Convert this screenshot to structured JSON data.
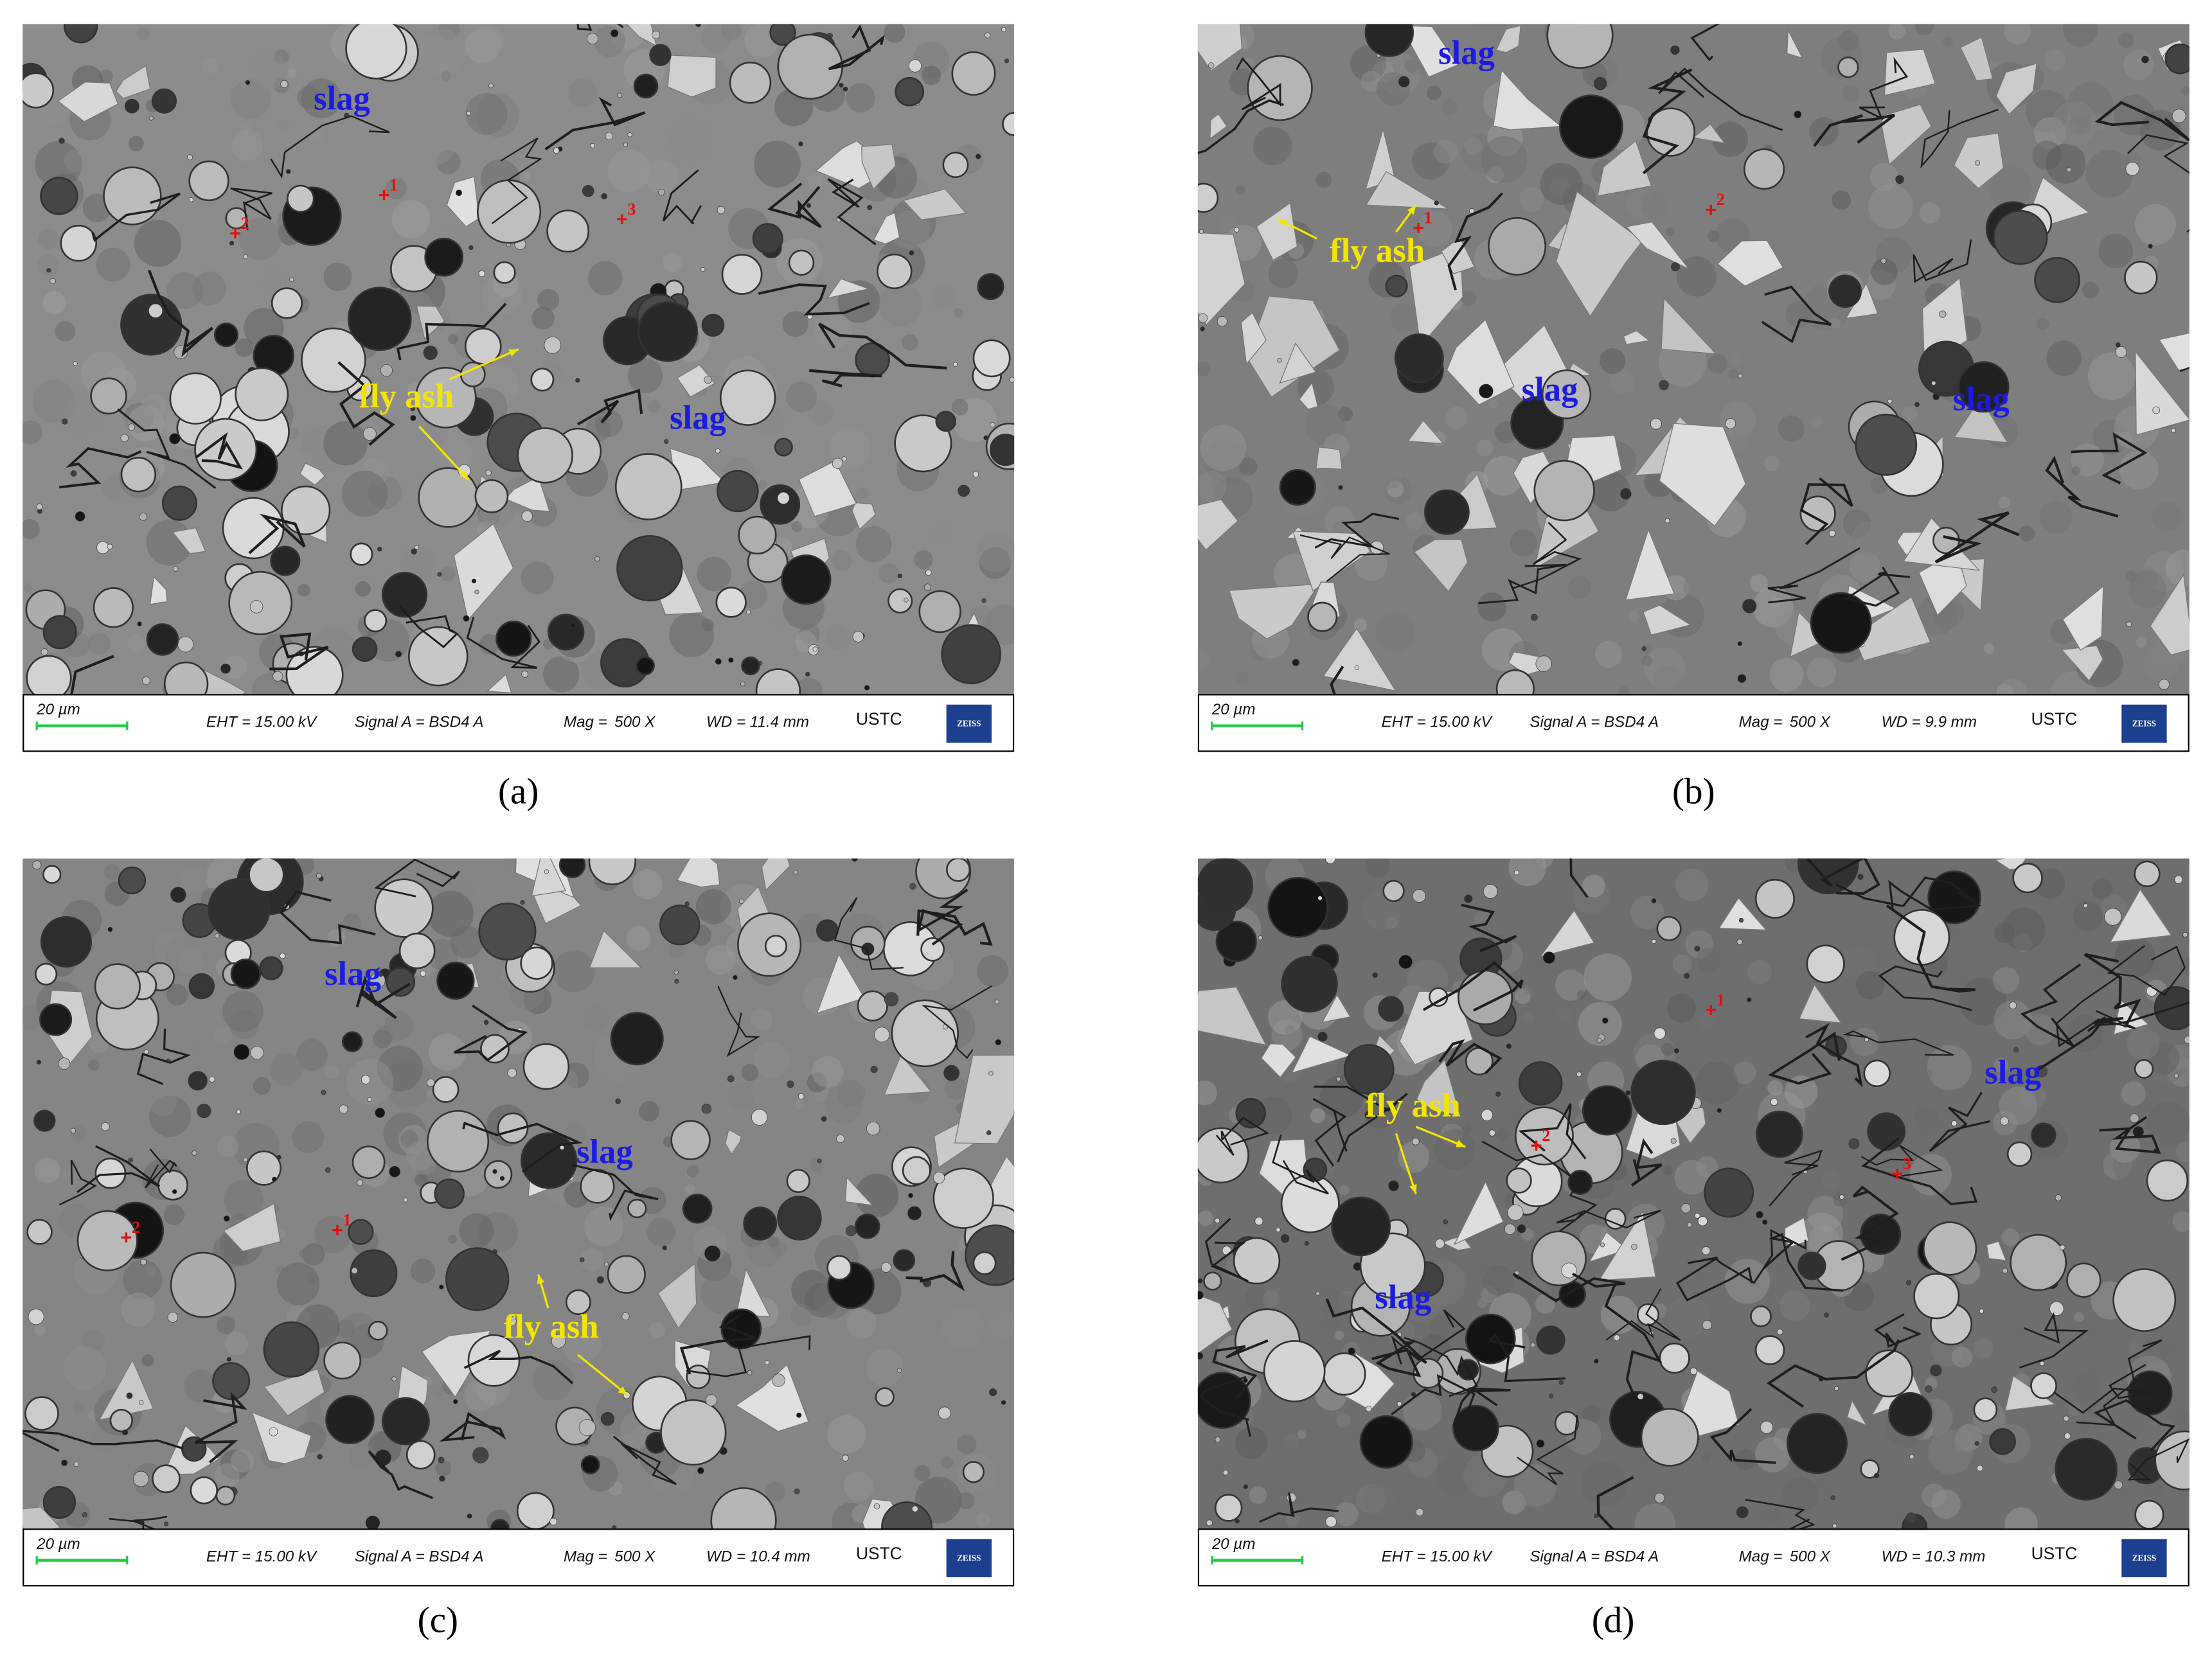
{
  "panels": [
    {
      "label": "(a)",
      "annotations": [
        "slag",
        "slag",
        "fly ash"
      ],
      "markers": [
        "1",
        "2",
        "3"
      ],
      "info": {
        "scale": "20 µm",
        "eht": "EHT = 15.00 kV",
        "signal": "Signal A = BSD4 A",
        "mag": "Mag =",
        "mag_value": "500 X",
        "wd": "WD = 11.4 mm",
        "lab": "USTC",
        "brand": "ZEISS"
      }
    },
    {
      "label": "(b)",
      "annotations": [
        "slag",
        "slag",
        "slag",
        "fly ash"
      ],
      "markers": [
        "1",
        "2"
      ],
      "info": {
        "scale": "20 µm",
        "eht": "EHT = 15.00 kV",
        "signal": "Signal A = BSD4 A",
        "mag": "Mag =",
        "mag_value": "500 X",
        "wd": "WD = 9.9 mm",
        "lab": "USTC",
        "brand": "ZEISS"
      }
    },
    {
      "label": "(c)",
      "annotations": [
        "slag",
        "slag",
        "fly ash"
      ],
      "markers": [
        "1",
        "2"
      ],
      "info": {
        "scale": "20 µm",
        "eht": "EHT = 15.00 kV",
        "signal": "Signal A = BSD4 A",
        "mag": "Mag =",
        "mag_value": "500 X",
        "wd": "WD = 10.4 mm",
        "lab": "USTC",
        "brand": "ZEISS"
      }
    },
    {
      "label": "(d)",
      "annotations": [
        "slag",
        "slag",
        "fly ash"
      ],
      "markers": [
        "1",
        "2",
        "3"
      ],
      "info": {
        "scale": "20 µm",
        "eht": "EHT = 15.00 kV",
        "signal": "Signal A = BSD4 A",
        "mag": "Mag =",
        "mag_value": "500 X",
        "wd": "WD = 10.3 mm",
        "lab": "USTC",
        "brand": "ZEISS"
      }
    }
  ]
}
